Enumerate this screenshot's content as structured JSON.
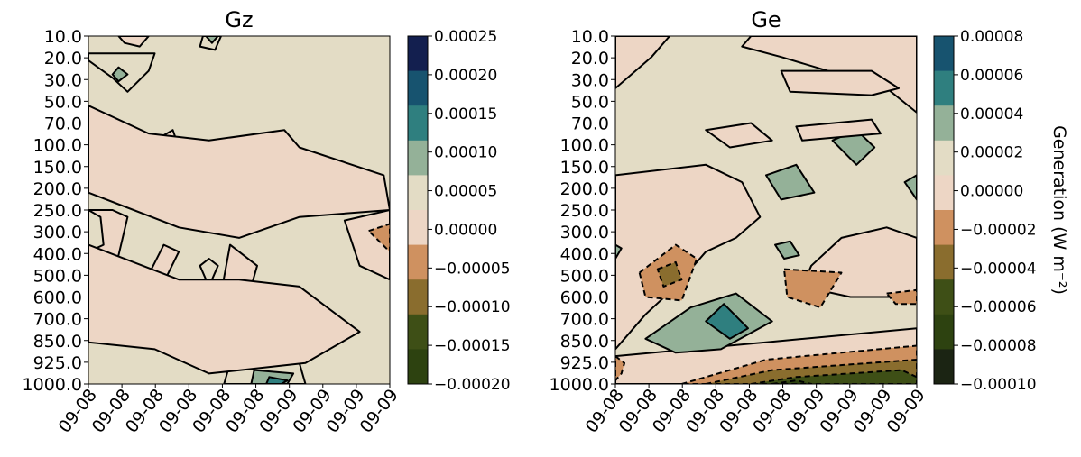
{
  "chart_data": [
    {
      "type": "heatmap",
      "title": "Gz",
      "x_tick_labels": [
        "09-08",
        "09-08",
        "09-08",
        "09-08",
        "09-08",
        "09-08",
        "09-09",
        "09-09",
        "09-09",
        "09-09"
      ],
      "y_tick_labels": [
        "10.0",
        "20.0",
        "30.0",
        "50.0",
        "70.0",
        "100.0",
        "150.0",
        "200.0",
        "250.0",
        "300.0",
        "400.0",
        "500.0",
        "600.0",
        "700.0",
        "850.0",
        "925.0",
        "1000.0"
      ],
      "colorbar_ticks": [
        "0.00025",
        "0.00020",
        "0.00015",
        "0.00010",
        "0.00005",
        "0.00000",
        "−0.00005",
        "−0.00010",
        "−0.00015",
        "−0.00020"
      ],
      "levels": [
        -0.0002,
        -0.00015,
        -0.0001,
        -5e-05,
        0.0,
        5e-05,
        0.0001,
        0.00015,
        0.0002,
        0.00025
      ],
      "level_colors": [
        "#2d4210",
        "#3e4f16",
        "#8a6d2e",
        "#cf9160",
        "#edd6c5",
        "#e3dcc5",
        "#94b198",
        "#2f7f7f",
        "#17536f",
        "#131f4f"
      ],
      "regions": [
        {
          "level": 4,
          "points": [
            [
              0.08,
              0.5
            ],
            [
              0.13,
              0.52
            ],
            [
              0.1,
              0.63
            ],
            [
              0.05,
              0.68
            ],
            [
              0.0,
              0.66
            ],
            [
              0.0,
              0.5
            ]
          ]
        },
        {
          "level": 4,
          "points": [
            [
              0.25,
              0.6
            ],
            [
              0.3,
              0.62
            ],
            [
              0.22,
              0.76
            ],
            [
              0.18,
              0.72
            ]
          ]
        },
        {
          "level": 4,
          "points": [
            [
              0.47,
              0.6
            ],
            [
              0.56,
              0.66
            ],
            [
              0.52,
              0.78
            ],
            [
              0.44,
              0.74
            ]
          ]
        },
        {
          "level": 4,
          "points": [
            [
              0.85,
              0.53
            ],
            [
              1.0,
              0.5
            ],
            [
              1.0,
              0.7
            ],
            [
              0.9,
              0.66
            ]
          ]
        },
        {
          "level": 3,
          "points": [
            [
              0.93,
              0.56
            ],
            [
              1.0,
              0.54
            ],
            [
              1.0,
              0.62
            ]
          ]
        },
        {
          "level": 5,
          "points": [
            [
              0.0,
              0.5
            ],
            [
              0.04,
              0.52
            ],
            [
              0.05,
              0.6
            ],
            [
              0.0,
              0.62
            ]
          ]
        },
        {
          "level": 5,
          "points": [
            [
              0.0,
              0.05
            ],
            [
              0.1,
              0.05
            ],
            [
              0.22,
              0.05
            ],
            [
              0.2,
              0.1
            ],
            [
              0.13,
              0.16
            ],
            [
              0.08,
              0.12
            ],
            [
              0.0,
              0.07
            ]
          ]
        },
        {
          "level": 6,
          "points": [
            [
              0.1,
              0.09
            ],
            [
              0.13,
              0.11
            ],
            [
              0.1,
              0.13
            ],
            [
              0.08,
              0.11
            ]
          ]
        },
        {
          "level": 5,
          "points": [
            [
              0.4,
              0.64
            ],
            [
              0.43,
              0.66
            ],
            [
              0.4,
              0.72
            ],
            [
              0.37,
              0.66
            ]
          ]
        },
        {
          "level": 5,
          "points": [
            [
              0.65,
              0.77
            ],
            [
              0.7,
              0.8
            ],
            [
              0.66,
              0.85
            ],
            [
              0.62,
              0.81
            ]
          ]
        },
        {
          "level": 5,
          "points": [
            [
              0.47,
              0.94
            ],
            [
              0.7,
              0.94
            ],
            [
              0.72,
              1.0
            ],
            [
              0.45,
              1.0
            ]
          ]
        },
        {
          "level": 6,
          "points": [
            [
              0.55,
              0.96
            ],
            [
              0.68,
              0.97
            ],
            [
              0.66,
              1.0
            ],
            [
              0.54,
              1.0
            ]
          ]
        },
        {
          "level": 7,
          "points": [
            [
              0.6,
              0.98
            ],
            [
              0.66,
              0.99
            ],
            [
              0.64,
              1.0
            ],
            [
              0.59,
              1.0
            ]
          ]
        },
        {
          "level": 5,
          "points": [
            [
              0.38,
              0.0
            ],
            [
              0.44,
              0.0
            ],
            [
              0.42,
              0.04
            ],
            [
              0.37,
              0.03
            ]
          ]
        },
        {
          "level": 6,
          "points": [
            [
              0.39,
              0.0
            ],
            [
              0.43,
              0.0
            ],
            [
              0.41,
              0.02
            ]
          ]
        },
        {
          "level": 4,
          "points": [
            [
              0.1,
              0.0
            ],
            [
              0.2,
              0.0
            ],
            [
              0.17,
              0.03
            ],
            [
              0.12,
              0.02
            ]
          ]
        },
        {
          "level": 4,
          "points": [
            [
              0.22,
              0.3
            ],
            [
              0.28,
              0.27
            ],
            [
              0.3,
              0.32
            ],
            [
              0.25,
              0.37
            ]
          ]
        },
        {
          "level": 4,
          "points": [
            [
              0.0,
              0.6
            ],
            [
              0.3,
              0.7
            ],
            [
              0.5,
              0.7
            ],
            [
              0.7,
              0.72
            ],
            [
              0.9,
              0.85
            ],
            [
              0.72,
              0.94
            ],
            [
              0.4,
              0.97
            ],
            [
              0.22,
              0.9
            ],
            [
              0.0,
              0.88
            ]
          ]
        },
        {
          "level": 4,
          "points": [
            [
              0.0,
              0.2
            ],
            [
              0.2,
              0.28
            ],
            [
              0.4,
              0.3
            ],
            [
              0.65,
              0.27
            ],
            [
              0.7,
              0.32
            ],
            [
              0.98,
              0.4
            ],
            [
              1.0,
              0.5
            ],
            [
              0.7,
              0.52
            ],
            [
              0.5,
              0.58
            ],
            [
              0.3,
              0.55
            ],
            [
              0.0,
              0.45
            ]
          ]
        }
      ]
    },
    {
      "type": "heatmap",
      "title": "Ge",
      "x_tick_labels": [
        "09-08",
        "09-08",
        "09-08",
        "09-08",
        "09-08",
        "09-08",
        "09-09",
        "09-09",
        "09-09",
        "09-09"
      ],
      "y_tick_labels": [
        "10.0",
        "20.0",
        "30.0",
        "50.0",
        "70.0",
        "100.0",
        "150.0",
        "200.0",
        "250.0",
        "300.0",
        "400.0",
        "500.0",
        "600.0",
        "700.0",
        "850.0",
        "925.0",
        "1000.0"
      ],
      "colorbar_ticks": [
        "0.00008",
        "0.00006",
        "0.00004",
        "0.00002",
        "0.00000",
        "−0.00002",
        "−0.00004",
        "−0.00006",
        "−0.00008",
        "−0.00010"
      ],
      "colorbar_label": "Generation  (W m⁻²)",
      "levels": [
        -0.0001,
        -8e-05,
        -6e-05,
        -4e-05,
        -2e-05,
        0.0,
        2e-05,
        4e-05,
        6e-05,
        8e-05
      ],
      "level_colors": [
        "#1b2413",
        "#2d4210",
        "#3e4f16",
        "#8a6d2e",
        "#cf9160",
        "#edd6c5",
        "#e3dcc5",
        "#94b198",
        "#2f7f7f",
        "#17536f"
      ],
      "regions": [
        {
          "level": 5,
          "points": [
            [
              0.0,
              0.0
            ],
            [
              0.18,
              0.0
            ],
            [
              0.12,
              0.06
            ],
            [
              0.0,
              0.15
            ]
          ]
        },
        {
          "level": 5,
          "points": [
            [
              0.45,
              0.0
            ],
            [
              1.0,
              0.0
            ],
            [
              1.0,
              0.22
            ],
            [
              0.9,
              0.15
            ],
            [
              0.55,
              0.06
            ],
            [
              0.42,
              0.03
            ]
          ]
        },
        {
          "level": 5,
          "points": [
            [
              0.55,
              0.1
            ],
            [
              0.85,
              0.1
            ],
            [
              0.94,
              0.15
            ],
            [
              0.85,
              0.17
            ],
            [
              0.58,
              0.16
            ]
          ]
        },
        {
          "level": 5,
          "points": [
            [
              0.0,
              0.4
            ],
            [
              0.3,
              0.37
            ],
            [
              0.42,
              0.42
            ],
            [
              0.48,
              0.52
            ],
            [
              0.4,
              0.58
            ],
            [
              0.3,
              0.62
            ],
            [
              0.2,
              0.72
            ],
            [
              0.1,
              0.8
            ],
            [
              0.0,
              0.9
            ]
          ]
        },
        {
          "level": 5,
          "points": [
            [
              0.0,
              0.92
            ],
            [
              0.5,
              0.88
            ],
            [
              1.0,
              0.84
            ],
            [
              1.0,
              1.0
            ],
            [
              0.0,
              1.0
            ]
          ]
        },
        {
          "level": 5,
          "points": [
            [
              0.75,
              0.58
            ],
            [
              0.9,
              0.55
            ],
            [
              1.0,
              0.58
            ],
            [
              1.0,
              0.75
            ],
            [
              0.78,
              0.75
            ],
            [
              0.62,
              0.72
            ],
            [
              0.65,
              0.66
            ]
          ]
        },
        {
          "level": 4,
          "points": [
            [
              0.08,
              0.68
            ],
            [
              0.2,
              0.6
            ],
            [
              0.27,
              0.64
            ],
            [
              0.22,
              0.76
            ],
            [
              0.1,
              0.75
            ]
          ]
        },
        {
          "level": 3,
          "points": [
            [
              0.14,
              0.67
            ],
            [
              0.2,
              0.65
            ],
            [
              0.22,
              0.7
            ],
            [
              0.16,
              0.72
            ]
          ]
        },
        {
          "level": 4,
          "points": [
            [
              0.56,
              0.67
            ],
            [
              0.75,
              0.68
            ],
            [
              0.68,
              0.78
            ],
            [
              0.57,
              0.75
            ]
          ]
        },
        {
          "level": 4,
          "points": [
            [
              0.9,
              0.74
            ],
            [
              1.0,
              0.73
            ],
            [
              1.0,
              0.77
            ],
            [
              0.93,
              0.77
            ]
          ]
        },
        {
          "level": 4,
          "points": [
            [
              0.0,
              0.92
            ],
            [
              0.03,
              0.94
            ],
            [
              0.02,
              0.97
            ],
            [
              0.0,
              0.99
            ]
          ]
        },
        {
          "level": 4,
          "points": [
            [
              0.22,
              1.0
            ],
            [
              0.5,
              0.93
            ],
            [
              1.0,
              0.89
            ],
            [
              1.0,
              1.0
            ]
          ]
        },
        {
          "level": 3,
          "points": [
            [
              0.3,
              1.0
            ],
            [
              0.52,
              0.96
            ],
            [
              1.0,
              0.93
            ],
            [
              1.0,
              1.0
            ]
          ]
        },
        {
          "level": 2,
          "points": [
            [
              0.45,
              1.0
            ],
            [
              0.6,
              0.98
            ],
            [
              0.95,
              0.96
            ],
            [
              1.0,
              0.98
            ],
            [
              1.0,
              1.0
            ]
          ]
        },
        {
          "level": 1,
          "points": [
            [
              0.52,
              1.0
            ],
            [
              0.6,
              0.99
            ],
            [
              0.65,
              1.0
            ]
          ]
        },
        {
          "level": 7,
          "points": [
            [
              0.1,
              0.87
            ],
            [
              0.25,
              0.78
            ],
            [
              0.4,
              0.74
            ],
            [
              0.52,
              0.82
            ],
            [
              0.35,
              0.9
            ],
            [
              0.2,
              0.91
            ]
          ]
        },
        {
          "level": 8,
          "points": [
            [
              0.3,
              0.82
            ],
            [
              0.36,
              0.77
            ],
            [
              0.44,
              0.84
            ],
            [
              0.38,
              0.87
            ]
          ]
        },
        {
          "level": 7,
          "points": [
            [
              0.5,
              0.4
            ],
            [
              0.6,
              0.37
            ],
            [
              0.66,
              0.45
            ],
            [
              0.55,
              0.47
            ]
          ]
        },
        {
          "level": 7,
          "points": [
            [
              0.72,
              0.3
            ],
            [
              0.8,
              0.27
            ],
            [
              0.86,
              0.32
            ],
            [
              0.8,
              0.37
            ]
          ]
        },
        {
          "level": 7,
          "points": [
            [
              0.53,
              0.6
            ],
            [
              0.58,
              0.59
            ],
            [
              0.61,
              0.63
            ],
            [
              0.56,
              0.64
            ]
          ]
        },
        {
          "level": 7,
          "points": [
            [
              0.96,
              0.42
            ],
            [
              1.0,
              0.4
            ],
            [
              1.0,
              0.47
            ]
          ]
        },
        {
          "level": 7,
          "points": [
            [
              0.0,
              0.6
            ],
            [
              0.02,
              0.61
            ],
            [
              0.0,
              0.64
            ]
          ]
        },
        {
          "level": 5,
          "points": [
            [
              0.3,
              0.27
            ],
            [
              0.45,
              0.25
            ],
            [
              0.52,
              0.3
            ],
            [
              0.38,
              0.32
            ]
          ]
        },
        {
          "level": 5,
          "points": [
            [
              0.6,
              0.26
            ],
            [
              0.85,
              0.24
            ],
            [
              0.88,
              0.28
            ],
            [
              0.62,
              0.3
            ]
          ]
        }
      ]
    }
  ]
}
